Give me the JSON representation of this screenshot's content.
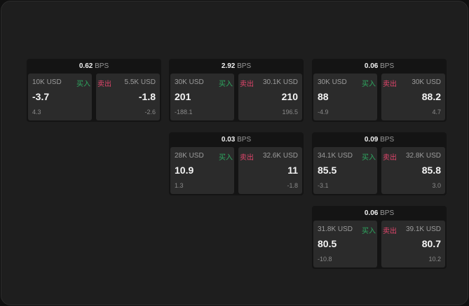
{
  "colors": {
    "buy": "#2ea860",
    "sell": "#e0456b",
    "background": "#1e1e1e"
  },
  "labels": {
    "buy": "买入",
    "sell": "卖出",
    "unit": "BPS"
  },
  "cards": [
    {
      "spread": "0.62",
      "bid": {
        "size": "10K USD",
        "price": "-3.7",
        "change": "4.3"
      },
      "ask": {
        "size": "5.5K USD",
        "price": "-1.8",
        "change": "-2.6"
      }
    },
    {
      "spread": "2.92",
      "bid": {
        "size": "30K USD",
        "price": "201",
        "change": "-188.1"
      },
      "ask": {
        "size": "30.1K USD",
        "price": "210",
        "change": "196.5"
      }
    },
    {
      "spread": "0.06",
      "bid": {
        "size": "30K USD",
        "price": "88",
        "change": "-4.9"
      },
      "ask": {
        "size": "30K USD",
        "price": "88.2",
        "change": "4.7"
      }
    },
    {
      "spread": "0.03",
      "bid": {
        "size": "28K USD",
        "price": "10.9",
        "change": "1.3"
      },
      "ask": {
        "size": "32.6K USD",
        "price": "11",
        "change": "-1.8"
      }
    },
    {
      "spread": "0.09",
      "bid": {
        "size": "34.1K USD",
        "price": "85.5",
        "change": "-3.1"
      },
      "ask": {
        "size": "32.8K USD",
        "price": "85.8",
        "change": "3.0"
      }
    },
    {
      "spread": "0.06",
      "bid": {
        "size": "31.8K USD",
        "price": "80.5",
        "change": "-10.8"
      },
      "ask": {
        "size": "39.1K USD",
        "price": "80.7",
        "change": "10.2"
      }
    }
  ]
}
